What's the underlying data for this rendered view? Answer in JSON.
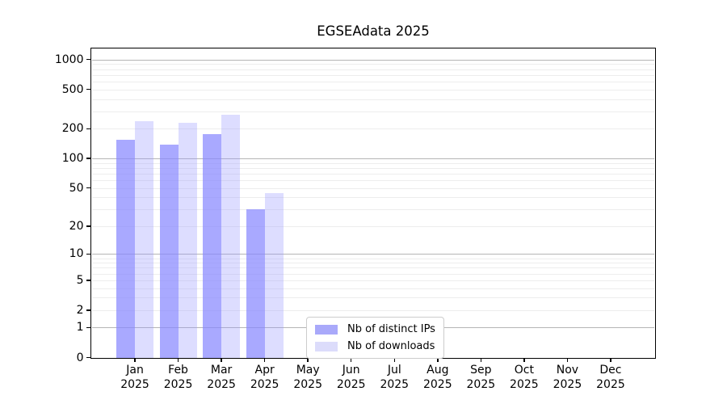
{
  "chart_data": {
    "type": "bar",
    "title": "EGSEAdata 2025",
    "categories": [
      "Jan",
      "Feb",
      "Mar",
      "Apr",
      "May",
      "Jun",
      "Jul",
      "Aug",
      "Sep",
      "Oct",
      "Nov",
      "Dec"
    ],
    "category_year_line": "2025",
    "series": [
      {
        "name": "Nb of distinct IPs",
        "bar_color": "rgba(136,136,255,0.72)",
        "legend_color": "#a9a9fa",
        "values": [
          154,
          138,
          175,
          30,
          0,
          0,
          0,
          0,
          0,
          0,
          0,
          0
        ]
      },
      {
        "name": "Nb of downloads",
        "bar_color": "rgba(153,153,255,0.33)",
        "legend_color": "#dcdcfb",
        "values": [
          240,
          230,
          278,
          44,
          0,
          0,
          0,
          0,
          0,
          0,
          0,
          0
        ]
      }
    ],
    "yscale": "log1p",
    "ytick_values": [
      0,
      1,
      2,
      5,
      10,
      20,
      50,
      100,
      200,
      500,
      1000
    ],
    "ylim_top_value": 1280,
    "major_gridlines": [
      1,
      10,
      100,
      1000
    ],
    "minor_gridlines": [
      2,
      3,
      4,
      5,
      6,
      7,
      8,
      9,
      20,
      30,
      40,
      50,
      60,
      70,
      80,
      90,
      200,
      300,
      400,
      500,
      600,
      700,
      800,
      900
    ],
    "grid": true,
    "legend_position": "lower center",
    "colors": {
      "spine": "#000000",
      "major_grid": "#b5b5b5",
      "minor_grid": "#ededed",
      "background": "#ffffff"
    }
  }
}
